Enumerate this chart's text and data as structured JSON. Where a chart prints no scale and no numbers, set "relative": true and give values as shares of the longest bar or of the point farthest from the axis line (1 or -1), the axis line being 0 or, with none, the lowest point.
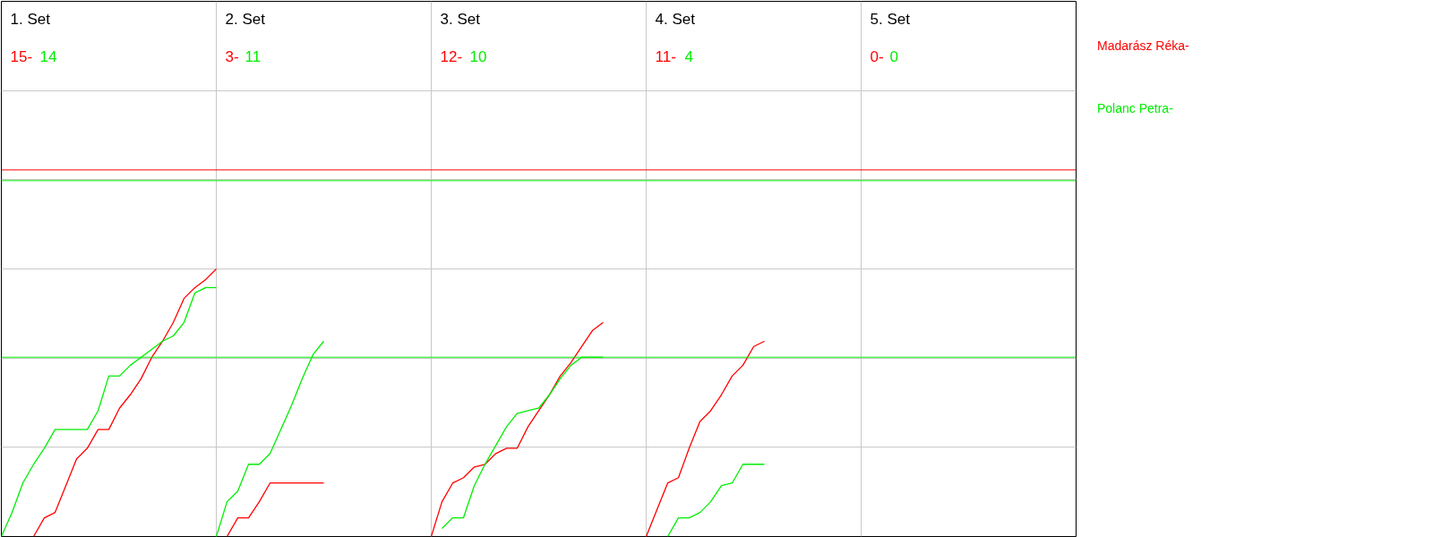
{
  "chart_data": {
    "type": "line",
    "relative": true,
    "grid": true,
    "marker": "none",
    "line_style": "solid",
    "categories": [
      null,
      null,
      null,
      null,
      null,
      null,
      null,
      null,
      null,
      null,
      null,
      null,
      null,
      null,
      null,
      null,
      null,
      null,
      null,
      null,
      null,
      null,
      null,
      null,
      null,
      null,
      null,
      null,
      null,
      null,
      null,
      null,
      null,
      null,
      null,
      null,
      null,
      null,
      null,
      null,
      null,
      null,
      null,
      null,
      null,
      null,
      null,
      null,
      null,
      null,
      null,
      null,
      null,
      null,
      null,
      null,
      null,
      null,
      null,
      null,
      null,
      null,
      null,
      null,
      null,
      null,
      null,
      null,
      null,
      null,
      null,
      null,
      null,
      null,
      null,
      null,
      null,
      null,
      null,
      null,
      null,
      null,
      null,
      null,
      null,
      null,
      null,
      null,
      null,
      null,
      null,
      null,
      null,
      null,
      null,
      null,
      null,
      null,
      null,
      null,
      null
    ],
    "series": [
      {
        "name": "Madarász Réka-",
        "color": "#ff0000",
        "values": [
          null,
          null,
          null,
          0,
          0.07,
          0.09,
          0.19,
          0.29,
          0.33,
          0.4,
          0.4,
          0.48,
          0.53,
          0.59,
          0.67,
          0.73,
          0.8,
          0.89,
          0.93,
          0.96,
          1,
          null,
          null,
          null,
          null,
          null,
          null,
          null,
          null,
          null,
          null,
          null,
          null,
          null,
          null,
          null,
          null,
          null,
          null,
          null,
          null,
          null,
          null,
          null,
          null,
          null,
          null,
          null,
          null,
          null,
          null,
          null,
          null,
          null,
          null,
          null,
          null,
          null,
          null,
          null,
          null,
          null,
          null,
          null,
          null,
          null,
          null,
          null,
          null,
          null,
          null,
          null,
          null,
          null,
          null,
          null,
          null,
          null,
          null,
          null,
          null,
          null,
          null,
          null,
          null,
          null,
          null,
          null,
          null,
          null,
          null,
          null,
          null,
          null,
          null,
          null,
          null,
          null,
          null,
          null,
          null
        ]
      },
      {
        "name": "Polanc Petra-",
        "color": "#00ee00",
        "values": [
          0,
          0.09,
          0.2,
          0.27,
          0.33,
          0.4,
          0.4,
          0.4,
          0.4,
          0.47,
          0.6,
          0.6,
          0.64,
          0.67,
          0.7,
          0.73,
          0.75,
          0.8,
          0.91,
          0.93,
          0.93,
          null,
          null,
          null,
          null,
          null,
          null,
          null,
          null,
          null,
          null,
          null,
          null,
          null,
          null,
          null,
          null,
          null,
          null,
          null,
          null,
          null,
          null,
          null,
          null,
          null,
          null,
          null,
          null,
          null,
          null,
          null,
          null,
          null,
          null,
          null,
          null,
          null,
          null,
          null,
          null,
          null,
          null,
          null,
          null,
          null,
          null,
          null,
          null,
          null,
          null,
          null,
          null,
          null,
          null,
          null,
          null,
          null,
          null,
          null,
          null,
          null,
          null,
          null,
          null,
          null,
          null,
          null,
          null,
          null,
          null,
          null,
          null,
          null,
          null,
          null,
          null,
          null,
          null,
          null,
          null
        ]
      },
      {
        "color": "#ff0000",
        "values": [
          null,
          null,
          null,
          null,
          null,
          null,
          null,
          null,
          null,
          null,
          null,
          null,
          null,
          null,
          null,
          null,
          null,
          null,
          null,
          null,
          null,
          0,
          0.07,
          0.07,
          0.13,
          0.2,
          0.2,
          0.2,
          0.2,
          0.2,
          0.2,
          null,
          null,
          null,
          null,
          null,
          null,
          null,
          null,
          null,
          null,
          null,
          null,
          null,
          null,
          null,
          null,
          null,
          null,
          null,
          null,
          null,
          null,
          null,
          null,
          null,
          null,
          null,
          null,
          null,
          null,
          null,
          null,
          null,
          null,
          null,
          null,
          null,
          null,
          null,
          null,
          null,
          null,
          null,
          null,
          null,
          null,
          null,
          null,
          null,
          null,
          null,
          null,
          null,
          null,
          null,
          null,
          null,
          null,
          null,
          null,
          null,
          null,
          null,
          null,
          null,
          null,
          null,
          null,
          null,
          null
        ]
      },
      {
        "color": "#00ee00",
        "values": [
          null,
          null,
          null,
          null,
          null,
          null,
          null,
          null,
          null,
          null,
          null,
          null,
          null,
          null,
          null,
          null,
          null,
          null,
          null,
          null,
          0,
          0.13,
          0.17,
          0.27,
          0.27,
          0.31,
          0.4,
          0.49,
          0.59,
          0.68,
          0.73,
          null,
          null,
          null,
          null,
          null,
          null,
          null,
          null,
          null,
          null,
          null,
          null,
          null,
          null,
          null,
          null,
          null,
          null,
          null,
          null,
          null,
          null,
          null,
          null,
          null,
          null,
          null,
          null,
          null,
          null,
          null,
          null,
          null,
          null,
          null,
          null,
          null,
          null,
          null,
          null,
          null,
          null,
          null,
          null,
          null,
          null,
          null,
          null,
          null,
          null,
          null,
          null,
          null,
          null,
          null,
          null,
          null,
          null,
          null,
          null,
          null,
          null,
          null,
          null,
          null,
          null,
          null,
          null,
          null,
          null
        ]
      },
      {
        "color": "#ff0000",
        "values": [
          null,
          null,
          null,
          null,
          null,
          null,
          null,
          null,
          null,
          null,
          null,
          null,
          null,
          null,
          null,
          null,
          null,
          null,
          null,
          null,
          null,
          null,
          null,
          null,
          null,
          null,
          null,
          null,
          null,
          null,
          null,
          null,
          null,
          null,
          null,
          null,
          null,
          null,
          null,
          null,
          0,
          0.13,
          0.2,
          0.22,
          0.26,
          0.27,
          0.31,
          0.33,
          0.33,
          0.41,
          0.47,
          0.53,
          0.6,
          0.65,
          0.71,
          0.77,
          0.8,
          null,
          null,
          null,
          null,
          null,
          null,
          null,
          null,
          null,
          null,
          null,
          null,
          null,
          null,
          null,
          null,
          null,
          null,
          null,
          null,
          null,
          null,
          null,
          null,
          null,
          null,
          null,
          null,
          null,
          null,
          null,
          null,
          null,
          null,
          null,
          null,
          null,
          null,
          null,
          null,
          null,
          null,
          null,
          null
        ]
      },
      {
        "color": "#00ee00",
        "values": [
          null,
          null,
          null,
          null,
          null,
          null,
          null,
          null,
          null,
          null,
          null,
          null,
          null,
          null,
          null,
          null,
          null,
          null,
          null,
          null,
          null,
          null,
          null,
          null,
          null,
          null,
          null,
          null,
          null,
          null,
          null,
          null,
          null,
          null,
          null,
          null,
          null,
          null,
          null,
          null,
          null,
          0.03,
          0.07,
          0.07,
          0.19,
          0.27,
          0.34,
          0.41,
          0.46,
          0.47,
          0.48,
          0.53,
          0.59,
          0.64,
          0.67,
          0.67,
          0.67,
          null,
          null,
          null,
          null,
          null,
          null,
          null,
          null,
          null,
          null,
          null,
          null,
          null,
          null,
          null,
          null,
          null,
          null,
          null,
          null,
          null,
          null,
          null,
          null,
          null,
          null,
          null,
          null,
          null,
          null,
          null,
          null,
          null,
          null,
          null,
          null,
          null,
          null,
          null,
          null,
          null,
          null,
          null,
          null
        ]
      },
      {
        "color": "#ff0000",
        "values": [
          null,
          null,
          null,
          null,
          null,
          null,
          null,
          null,
          null,
          null,
          null,
          null,
          null,
          null,
          null,
          null,
          null,
          null,
          null,
          null,
          null,
          null,
          null,
          null,
          null,
          null,
          null,
          null,
          null,
          null,
          null,
          null,
          null,
          null,
          null,
          null,
          null,
          null,
          null,
          null,
          null,
          null,
          null,
          null,
          null,
          null,
          null,
          null,
          null,
          null,
          null,
          null,
          null,
          null,
          null,
          null,
          null,
          null,
          null,
          null,
          0,
          0.1,
          0.2,
          0.22,
          0.33,
          0.43,
          0.47,
          0.53,
          0.6,
          0.64,
          0.71,
          0.73,
          null,
          null,
          null,
          null,
          null,
          null,
          null,
          null,
          null,
          null,
          null,
          null,
          null,
          null,
          null,
          null,
          null,
          null,
          null,
          null,
          null,
          null,
          null,
          null,
          null,
          null,
          null,
          null,
          null
        ]
      },
      {
        "color": "#00ee00",
        "values": [
          null,
          null,
          null,
          null,
          null,
          null,
          null,
          null,
          null,
          null,
          null,
          null,
          null,
          null,
          null,
          null,
          null,
          null,
          null,
          null,
          null,
          null,
          null,
          null,
          null,
          null,
          null,
          null,
          null,
          null,
          null,
          null,
          null,
          null,
          null,
          null,
          null,
          null,
          null,
          null,
          null,
          null,
          null,
          null,
          null,
          null,
          null,
          null,
          null,
          null,
          null,
          null,
          null,
          null,
          null,
          null,
          null,
          null,
          null,
          null,
          null,
          null,
          0,
          0.07,
          0.07,
          0.09,
          0.13,
          0.19,
          0.2,
          0.27,
          0.27,
          0.27,
          null,
          null,
          null,
          null,
          null,
          null,
          null,
          null,
          null,
          null,
          null,
          null,
          null,
          null,
          null,
          null,
          null,
          null,
          null,
          null,
          null,
          null,
          null,
          null,
          null,
          null,
          null,
          null,
          null
        ]
      }
    ],
    "ref_lines": [
      {
        "axis": "y",
        "value": 1.37,
        "color": "#ff0000"
      },
      {
        "axis": "y",
        "value": 1.33,
        "color": "#00ee00"
      },
      {
        "axis": "y",
        "value": 0.67,
        "color": "#00ee00"
      }
    ],
    "annotations": [
      "1. Set",
      "2. Set",
      "3. Set",
      "4. Set",
      "5. Set",
      "15-",
      "14",
      "3-",
      "11",
      "12-",
      "10",
      "11-",
      "4",
      "0-",
      "0"
    ]
  }
}
